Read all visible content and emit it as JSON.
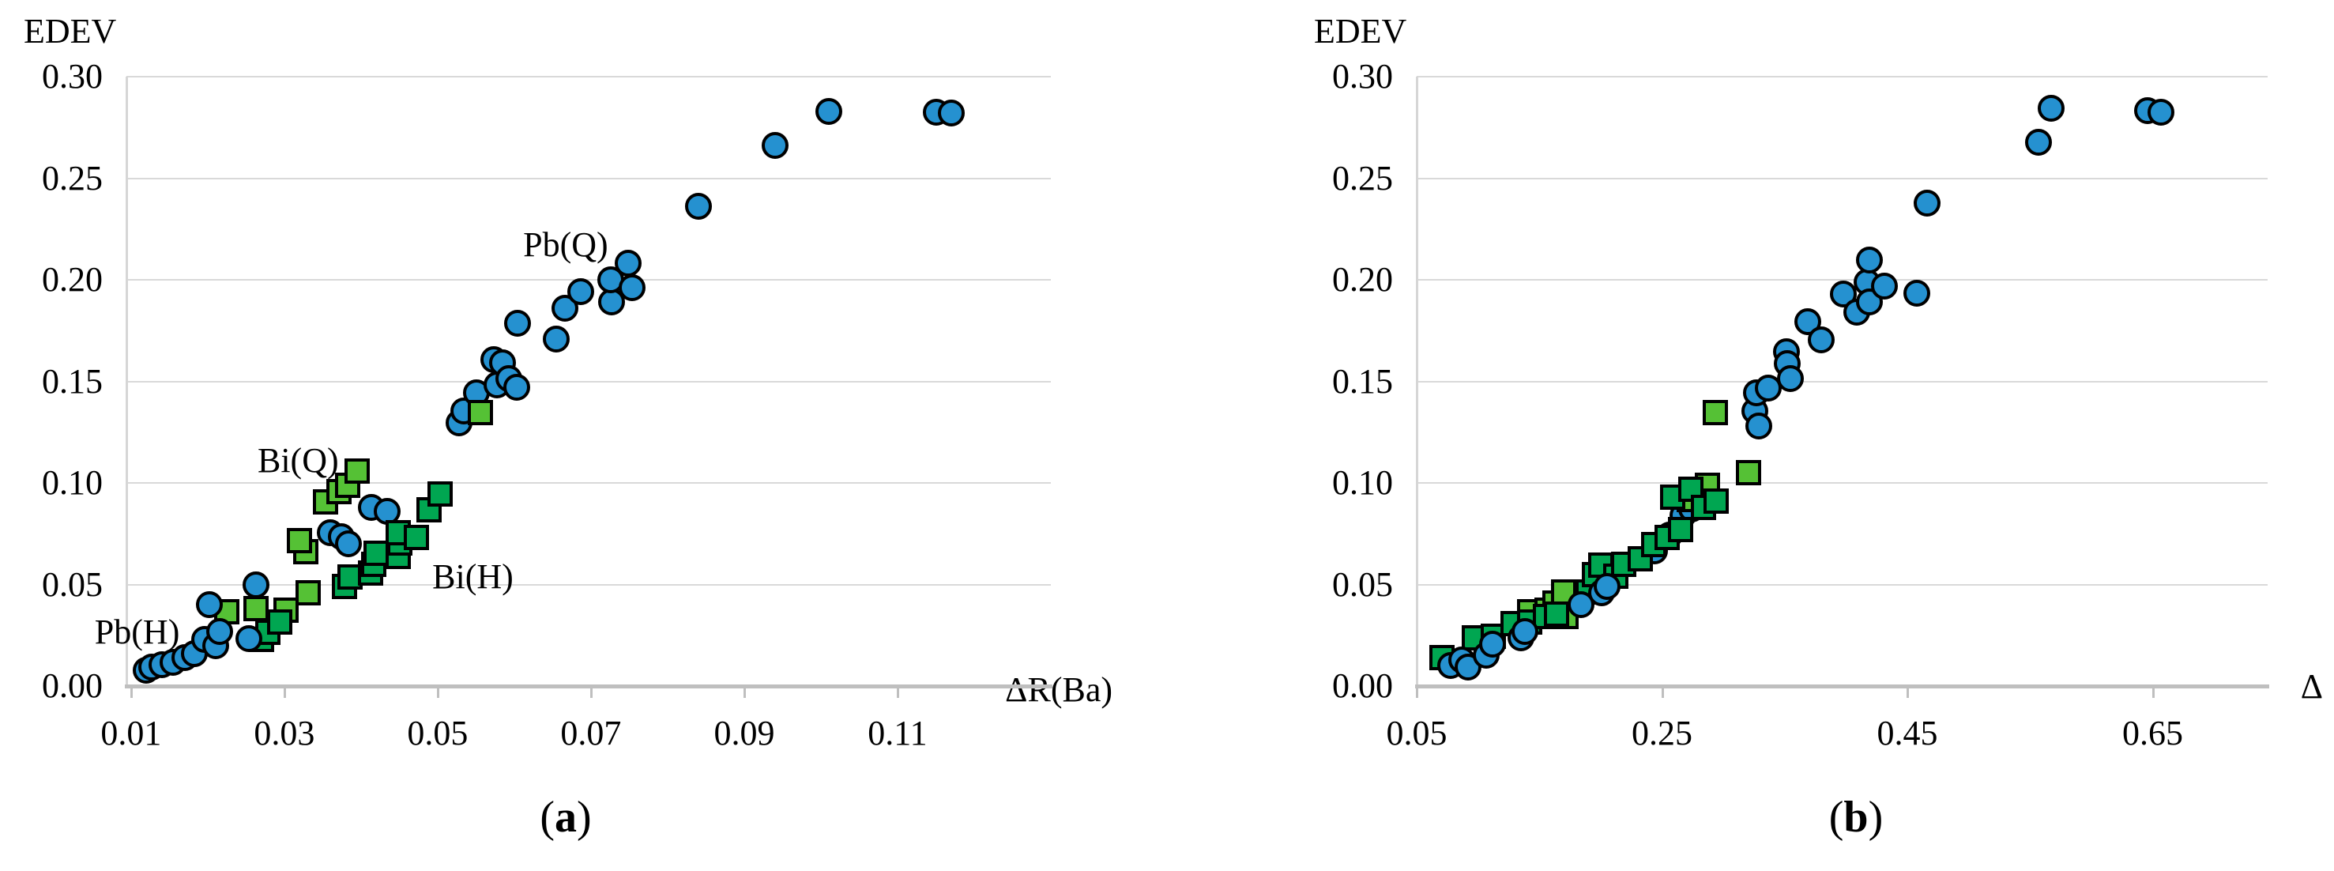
{
  "figure": {
    "background": "#ffffff",
    "text_color": "#000000"
  },
  "colors": {
    "blue_marker": "#2591D0",
    "light_green_marker": "#55C135",
    "dark_green_marker": "#00A651",
    "marker_stroke": "#000000",
    "gridline": "#d9d9d9",
    "axis_line": "#bfbfbf"
  },
  "chart_data": [
    {
      "type": "scatter",
      "panel": "a",
      "caption_open": "(",
      "caption_letter": "a",
      "caption_close": ")",
      "ylabel": "EDEV",
      "xlabel": "ΔR(Ba)",
      "xlim": [
        0.0094,
        0.13
      ],
      "ylim": [
        0.0,
        0.3
      ],
      "grid": "horizontal",
      "legend_position": "none",
      "xticks": [
        0.01,
        0.03,
        0.05,
        0.07,
        0.09,
        0.11
      ],
      "xtick_labels": [
        "0.01",
        "0.03",
        "0.05",
        "0.07",
        "0.09",
        "0.11"
      ],
      "yticks": [
        0.3,
        0.25,
        0.2,
        0.15,
        0.1,
        0.05,
        0.0
      ],
      "ytick_labels": [
        "0.30",
        "0.25",
        "0.20",
        "0.15",
        "0.10",
        "0.05",
        "0.00"
      ],
      "annotations": [
        {
          "text": "Pb(Q)",
          "x": 0.0667,
          "y": 0.2171
        },
        {
          "text": "Bi(Q)",
          "x": 0.0318,
          "y": 0.1109
        },
        {
          "text": "Bi(H)",
          "x": 0.0546,
          "y": 0.0537
        },
        {
          "text": "Pb(H)",
          "x": 0.0108,
          "y": 0.0265
        }
      ],
      "series": [
        {
          "name": "Pb(Q)",
          "marker": "circle",
          "color_key": "blue_marker",
          "points": [
            [
              0.036,
              0.0756
            ],
            [
              0.0374,
              0.0735
            ],
            [
              0.0384,
              0.07
            ],
            [
              0.0414,
              0.088
            ],
            [
              0.0434,
              0.086
            ],
            [
              0.0528,
              0.1296
            ],
            [
              0.0534,
              0.1354
            ],
            [
              0.0551,
              0.1443
            ],
            [
              0.0577,
              0.1482
            ],
            [
              0.0573,
              0.1607
            ],
            [
              0.0585,
              0.159
            ],
            [
              0.0593,
              0.1513
            ],
            [
              0.0603,
              0.147
            ],
            [
              0.0604,
              0.1786
            ],
            [
              0.0655,
              0.171
            ],
            [
              0.0666,
              0.186
            ],
            [
              0.0687,
              0.194
            ],
            [
              0.0727,
              0.189
            ],
            [
              0.0726,
              0.2
            ],
            [
              0.0754,
              0.196
            ],
            [
              0.0749,
              0.208
            ],
            [
              0.084,
              0.236
            ],
            [
              0.094,
              0.266
            ],
            [
              0.101,
              0.283
            ],
            [
              0.1151,
              0.2825
            ],
            [
              0.117,
              0.282
            ]
          ]
        },
        {
          "name": "Bi(Q)",
          "marker": "square",
          "color_key": "light_green_marker",
          "points": [
            [
              0.0225,
              0.0365
            ],
            [
              0.0263,
              0.0383
            ],
            [
              0.0302,
              0.0375
            ],
            [
              0.0331,
              0.046
            ],
            [
              0.0328,
              0.066
            ],
            [
              0.032,
              0.0715
            ],
            [
              0.0354,
              0.0907
            ],
            [
              0.0371,
              0.0957
            ],
            [
              0.0383,
              0.099
            ],
            [
              0.0395,
              0.106
            ],
            [
              0.0556,
              0.1346
            ]
          ]
        },
        {
          "name": "Bi(H)",
          "marker": "square",
          "color_key": "dark_green_marker",
          "points": [
            [
              0.027,
              0.023
            ],
            [
              0.0279,
              0.0265
            ],
            [
              0.0294,
              0.0315
            ],
            [
              0.0378,
              0.049
            ],
            [
              0.0386,
              0.0537
            ],
            [
              0.0413,
              0.0556
            ],
            [
              0.0417,
              0.0599
            ],
            [
              0.042,
              0.0654
            ],
            [
              0.0449,
              0.0638
            ],
            [
              0.0451,
              0.0704
            ],
            [
              0.0449,
              0.0755
            ],
            [
              0.0472,
              0.0732
            ],
            [
              0.0489,
              0.0868
            ],
            [
              0.0503,
              0.0946
            ]
          ]
        },
        {
          "name": "Pb(H)",
          "marker": "circle",
          "color_key": "blue_marker",
          "points": [
            [
              0.012,
              0.0078
            ],
            [
              0.0127,
              0.0092
            ],
            [
              0.014,
              0.0105
            ],
            [
              0.0155,
              0.0118
            ],
            [
              0.017,
              0.014
            ],
            [
              0.0183,
              0.016
            ],
            [
              0.0196,
              0.023
            ],
            [
              0.021,
              0.02
            ],
            [
              0.0216,
              0.027
            ],
            [
              0.0254,
              0.0232
            ],
            [
              0.0202,
              0.04
            ],
            [
              0.0263,
              0.05
            ]
          ]
        }
      ]
    },
    {
      "type": "scatter",
      "panel": "b",
      "caption_open": "(",
      "caption_letter": "b",
      "caption_close": ")",
      "ylabel": "EDEV",
      "xlabel": "Δ",
      "xlim": [
        0.05,
        0.7437
      ],
      "ylim": [
        0.0,
        0.3
      ],
      "grid": "horizontal",
      "legend_position": "none",
      "xticks": [
        0.05,
        0.25,
        0.45,
        0.65
      ],
      "xtick_labels": [
        "0.05",
        "0.25",
        "0.45",
        "0.65"
      ],
      "yticks": [
        0.3,
        0.25,
        0.2,
        0.15,
        0.1,
        0.05,
        0.0
      ],
      "ytick_labels": [
        "0.30",
        "0.25",
        "0.20",
        "0.15",
        "0.10",
        "0.05",
        "0.00"
      ],
      "annotations": [],
      "series": [
        {
          "name": "Pb(Q)",
          "marker": "circle",
          "color_key": "blue_marker",
          "points": [
            [
              0.244,
              0.0665
            ],
            [
              0.256,
              0.0743
            ],
            [
              0.267,
              0.084
            ],
            [
              0.274,
              0.0872
            ],
            [
              0.3257,
              0.1354
            ],
            [
              0.329,
              0.1281
            ],
            [
              0.327,
              0.1444
            ],
            [
              0.3366,
              0.1468
            ],
            [
              0.3513,
              0.1646
            ],
            [
              0.3524,
              0.1588
            ],
            [
              0.3546,
              0.1514
            ],
            [
              0.369,
              0.1794
            ],
            [
              0.38,
              0.1704
            ],
            [
              0.398,
              0.193
            ],
            [
              0.409,
              0.1841
            ],
            [
              0.417,
              0.1988
            ],
            [
              0.419,
              0.2097
            ],
            [
              0.419,
              0.189
            ],
            [
              0.431,
              0.1969
            ],
            [
              0.458,
              0.1935
            ],
            [
              0.466,
              0.2377
            ],
            [
              0.557,
              0.2677
            ],
            [
              0.567,
              0.2844
            ],
            [
              0.646,
              0.2833
            ],
            [
              0.657,
              0.2825
            ]
          ]
        },
        {
          "name": "Bi(Q)",
          "marker": "square",
          "color_key": "light_green_marker",
          "points": [
            [
              0.142,
              0.0366
            ],
            [
              0.156,
              0.0372
            ],
            [
              0.163,
              0.041
            ],
            [
              0.17,
              0.0463
            ],
            [
              0.172,
              0.0342
            ],
            [
              0.272,
              0.0918
            ],
            [
              0.2873,
              0.0988
            ],
            [
              0.2935,
              0.1346
            ],
            [
              0.3205,
              0.105
            ]
          ]
        },
        {
          "name": "Bi(H)",
          "marker": "square",
          "color_key": "dark_green_marker",
          "points": [
            [
              0.0706,
              0.014
            ],
            [
              0.097,
              0.0237
            ],
            [
              0.1125,
              0.0245
            ],
            [
              0.1286,
              0.0307
            ],
            [
              0.142,
              0.0315
            ],
            [
              0.155,
              0.0342
            ],
            [
              0.164,
              0.0354
            ],
            [
              0.19,
              0.0463
            ],
            [
              0.195,
              0.0549
            ],
            [
              0.2,
              0.0595
            ],
            [
              0.212,
              0.0541
            ],
            [
              0.219,
              0.0599
            ],
            [
              0.232,
              0.0627
            ],
            [
              0.243,
              0.0697
            ],
            [
              0.254,
              0.0732
            ],
            [
              0.259,
              0.093
            ],
            [
              0.265,
              0.077
            ],
            [
              0.2737,
              0.0969
            ],
            [
              0.284,
              0.0879
            ],
            [
              0.294,
              0.0911
            ]
          ]
        },
        {
          "name": "Pb(H)",
          "marker": "circle",
          "color_key": "blue_marker",
          "points": [
            [
              0.078,
              0.01
            ],
            [
              0.0867,
              0.0128
            ],
            [
              0.092,
              0.0093
            ],
            [
              0.107,
              0.0152
            ],
            [
              0.112,
              0.0206
            ],
            [
              0.135,
              0.0237
            ],
            [
              0.138,
              0.027
            ],
            [
              0.184,
              0.0401
            ],
            [
              0.201,
              0.0459
            ],
            [
              0.205,
              0.049
            ]
          ]
        }
      ]
    }
  ]
}
